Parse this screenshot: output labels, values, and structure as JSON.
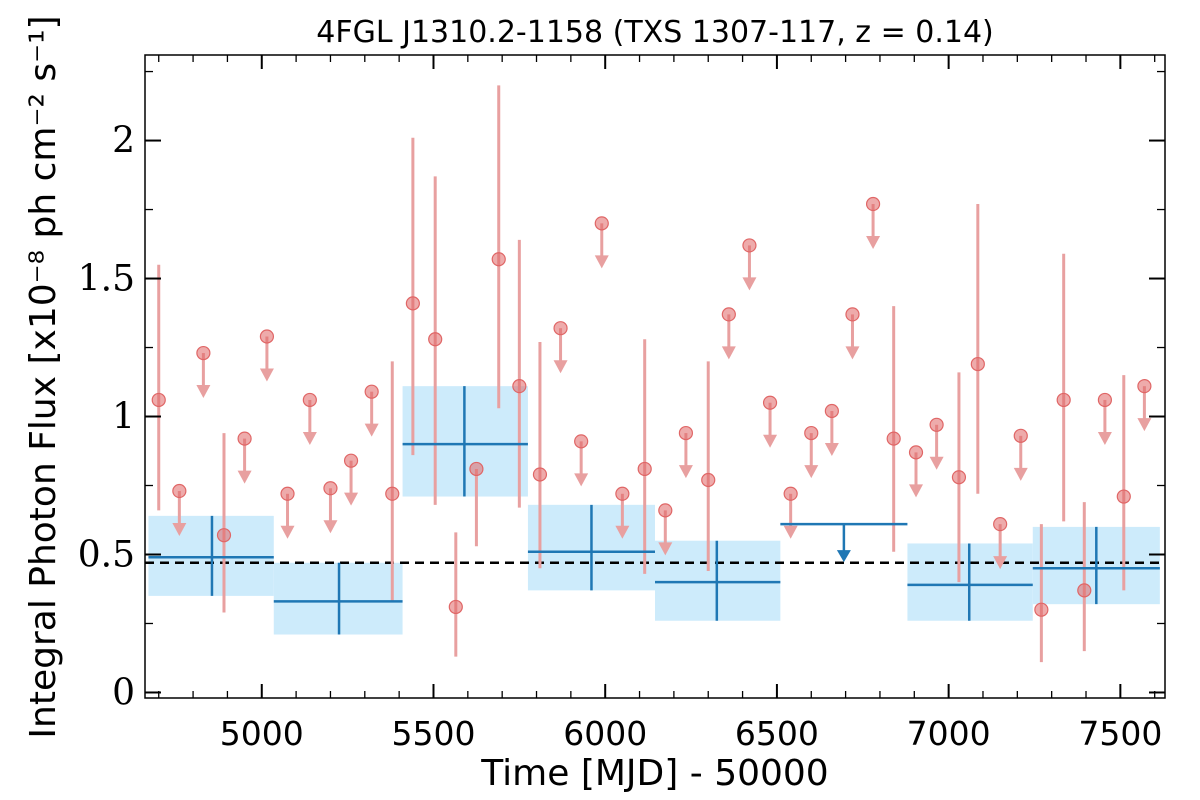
{
  "chart_data": {
    "type": "scatter",
    "title": "4FGL J1310.2-1158 (TXS 1307-117, z = 0.14)",
    "xlabel": "Time [MJD] - 50000",
    "ylabel": "Integral Photon Flux [x10⁻⁸ ph cm⁻² s⁻¹]",
    "xlim": [
      4660,
      7630
    ],
    "ylim": [
      -0.02,
      2.31
    ],
    "x_ticks": [
      "5000",
      "5500",
      "6000",
      "6500",
      "7000",
      "7500"
    ],
    "x_tick_values": [
      5000,
      5500,
      6000,
      6500,
      7000,
      7500
    ],
    "y_ticks": [
      "0",
      "0.5",
      "1",
      "1.5",
      "2"
    ],
    "y_tick_values": [
      0,
      0.5,
      1,
      1.5,
      2
    ],
    "reference_line": {
      "y": 0.47,
      "style": "dashed",
      "color": "#000000"
    },
    "colors": {
      "short_bin_points": "#e06666",
      "short_bin_errors": "#e8a0a0",
      "long_bin": "#1f77b4",
      "long_bin_box": "#cdebfb"
    },
    "short_bins": {
      "detections": [
        {
          "x": 4700,
          "y": 1.06,
          "lo": 0.66,
          "hi": 1.55
        },
        {
          "x": 4890,
          "y": 0.57,
          "lo": 0.29,
          "hi": 0.94
        },
        {
          "x": 5380,
          "y": 0.72,
          "lo": 0.33,
          "hi": 1.2
        },
        {
          "x": 5440,
          "y": 1.41,
          "lo": 0.86,
          "hi": 2.01
        },
        {
          "x": 5505,
          "y": 1.28,
          "lo": 0.68,
          "hi": 1.87
        },
        {
          "x": 5565,
          "y": 0.31,
          "lo": 0.13,
          "hi": 0.58
        },
        {
          "x": 5625,
          "y": 0.81,
          "lo": 0.53,
          "hi": 0.81
        },
        {
          "x": 5690,
          "y": 1.57,
          "lo": 1.03,
          "hi": 2.2
        },
        {
          "x": 5750,
          "y": 1.11,
          "lo": 0.67,
          "hi": 1.64
        },
        {
          "x": 5810,
          "y": 0.79,
          "lo": 0.45,
          "hi": 1.27
        },
        {
          "x": 6115,
          "y": 0.81,
          "lo": 0.43,
          "hi": 1.28
        },
        {
          "x": 6300,
          "y": 0.77,
          "lo": 0.44,
          "hi": 1.2
        },
        {
          "x": 6840,
          "y": 0.92,
          "lo": 0.51,
          "hi": 1.4
        },
        {
          "x": 7030,
          "y": 0.78,
          "lo": 0.4,
          "hi": 1.16
        },
        {
          "x": 7085,
          "y": 1.19,
          "lo": 0.72,
          "hi": 1.77
        },
        {
          "x": 7270,
          "y": 0.3,
          "lo": 0.11,
          "hi": 0.61
        },
        {
          "x": 7335,
          "y": 1.06,
          "lo": 0.62,
          "hi": 1.59
        },
        {
          "x": 7395,
          "y": 0.37,
          "lo": 0.15,
          "hi": 0.69
        },
        {
          "x": 7510,
          "y": 0.71,
          "lo": 0.37,
          "hi": 1.15
        }
      ],
      "upper_limits": [
        {
          "x": 4760,
          "y": 0.73
        },
        {
          "x": 4830,
          "y": 1.23
        },
        {
          "x": 4950,
          "y": 0.92
        },
        {
          "x": 5015,
          "y": 1.29
        },
        {
          "x": 5075,
          "y": 0.72
        },
        {
          "x": 5140,
          "y": 1.06
        },
        {
          "x": 5200,
          "y": 0.74
        },
        {
          "x": 5260,
          "y": 0.84
        },
        {
          "x": 5320,
          "y": 1.09
        },
        {
          "x": 5870,
          "y": 1.32
        },
        {
          "x": 5930,
          "y": 0.91
        },
        {
          "x": 5990,
          "y": 1.7
        },
        {
          "x": 6050,
          "y": 0.72
        },
        {
          "x": 6175,
          "y": 0.66
        },
        {
          "x": 6235,
          "y": 0.94
        },
        {
          "x": 6360,
          "y": 1.37
        },
        {
          "x": 6420,
          "y": 1.62
        },
        {
          "x": 6480,
          "y": 1.05
        },
        {
          "x": 6540,
          "y": 0.72
        },
        {
          "x": 6600,
          "y": 0.94
        },
        {
          "x": 6660,
          "y": 1.02
        },
        {
          "x": 6720,
          "y": 1.37
        },
        {
          "x": 6780,
          "y": 1.77
        },
        {
          "x": 6905,
          "y": 0.87
        },
        {
          "x": 6965,
          "y": 0.97
        },
        {
          "x": 7150,
          "y": 0.61
        },
        {
          "x": 7210,
          "y": 0.93
        },
        {
          "x": 7455,
          "y": 1.06
        },
        {
          "x": 7570,
          "y": 1.11
        }
      ]
    },
    "long_bins": {
      "detections": [
        {
          "x0": 4670,
          "x1": 5035,
          "xc": 4855,
          "y": 0.49,
          "lo": 0.35,
          "hi": 0.64
        },
        {
          "x0": 5035,
          "x1": 5410,
          "xc": 5225,
          "y": 0.33,
          "lo": 0.21,
          "hi": 0.47
        },
        {
          "x0": 5410,
          "x1": 5775,
          "xc": 5590,
          "y": 0.9,
          "lo": 0.71,
          "hi": 1.11
        },
        {
          "x0": 5775,
          "x1": 6145,
          "xc": 5960,
          "y": 0.51,
          "lo": 0.37,
          "hi": 0.68
        },
        {
          "x0": 6145,
          "x1": 6510,
          "xc": 6325,
          "y": 0.4,
          "lo": 0.26,
          "hi": 0.55
        },
        {
          "x0": 6880,
          "x1": 7245,
          "xc": 7060,
          "y": 0.39,
          "lo": 0.26,
          "hi": 0.54
        },
        {
          "x0": 7245,
          "x1": 7615,
          "xc": 7430,
          "y": 0.45,
          "lo": 0.32,
          "hi": 0.6
        }
      ],
      "upper_limits": [
        {
          "x0": 6510,
          "x1": 6880,
          "xc": 6695,
          "y": 0.61
        }
      ]
    }
  }
}
